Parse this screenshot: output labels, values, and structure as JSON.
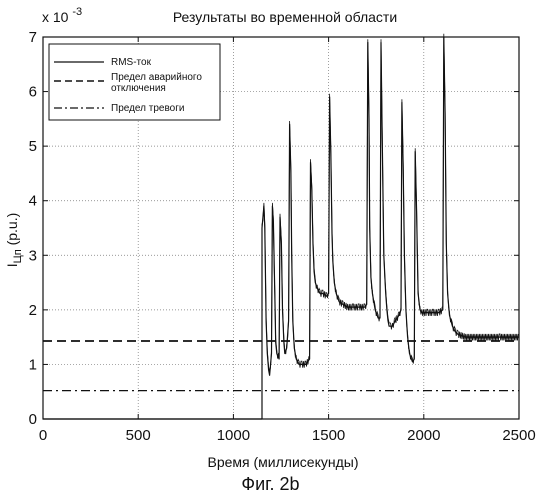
{
  "chart_data": {
    "type": "line",
    "title": "Результаты во временной области",
    "xlabel": "Время (миллисекунды)",
    "ylabel": "I",
    "ylabel_subscript": "Цп",
    "ylabel_suffix": " (p.u.)",
    "y_multiplier": "x 10",
    "y_multiplier_exponent": "-3",
    "xlim": [
      0,
      2500
    ],
    "ylim": [
      0,
      7
    ],
    "x_ticks": [
      "0",
      "500",
      "1000",
      "1500",
      "2000",
      "2500"
    ],
    "y_ticks": [
      "0",
      "1",
      "2",
      "3",
      "4",
      "5",
      "6",
      "7"
    ],
    "grid": true,
    "legend_position": "top-left",
    "series": [
      {
        "name": "RMS-ток",
        "style": "solid",
        "x": [
          0,
          1150,
          1150,
          1160,
          1165,
          1172,
          1178,
          1185,
          1190,
          1200,
          1205,
          1210,
          1218,
          1222,
          1228,
          1240,
          1245,
          1252,
          1258,
          1265,
          1270,
          1280,
          1290,
          1295,
          1302,
          1306,
          1312,
          1320,
          1330,
          1345,
          1360,
          1380,
          1400,
          1405,
          1412,
          1418,
          1424,
          1430,
          1440,
          1455,
          1470,
          1490,
          1500,
          1505,
          1512,
          1518,
          1522,
          1530,
          1540,
          1555,
          1575,
          1600,
          1630,
          1660,
          1690,
          1700,
          1706,
          1712,
          1716,
          1722,
          1730,
          1745,
          1760,
          1770,
          1775,
          1780,
          1790,
          1800,
          1806,
          1812,
          1818,
          1825,
          1835,
          1850,
          1870,
          1880,
          1885,
          1892,
          1898,
          1906,
          1915,
          1925,
          1940,
          1950,
          1955,
          1962,
          1970,
          1980,
          1990,
          2020,
          2050,
          2080,
          2100,
          2105,
          2112,
          2118,
          2125,
          2135,
          2150,
          2165,
          2180,
          2220,
          2300,
          2400,
          2500
        ],
        "values": [
          0,
          0,
          3.5,
          3.9,
          3.5,
          1.8,
          1.2,
          0.9,
          0.8,
          1.2,
          3.9,
          3.6,
          2.2,
          1.4,
          1.2,
          1.1,
          3.7,
          3.2,
          2.0,
          1.4,
          1.2,
          1.3,
          1.8,
          5.4,
          4.5,
          3.0,
          1.8,
          1.3,
          1.1,
          1.0,
          1.0,
          1.0,
          1.1,
          4.7,
          4.2,
          3.2,
          2.7,
          2.5,
          2.4,
          2.3,
          2.3,
          2.25,
          2.3,
          5.9,
          4.8,
          3.4,
          2.9,
          2.5,
          2.3,
          2.15,
          2.1,
          2.05,
          2.05,
          2.05,
          2.05,
          2.1,
          6.9,
          5.5,
          3.5,
          2.6,
          2.3,
          2.0,
          1.85,
          1.85,
          6.9,
          5.6,
          3.0,
          2.3,
          2.0,
          1.8,
          1.7,
          1.7,
          1.7,
          1.8,
          1.9,
          2.0,
          5.8,
          4.6,
          3.0,
          2.0,
          1.5,
          1.2,
          1.05,
          1.1,
          4.9,
          3.8,
          2.3,
          2.0,
          1.95,
          1.95,
          1.95,
          1.95,
          2.0,
          7.0,
          5.6,
          3.2,
          2.3,
          1.9,
          1.7,
          1.6,
          1.55,
          1.5,
          1.5,
          1.5,
          1.5
        ]
      },
      {
        "name": "Предел аварийного отключения",
        "legend_lines": [
          "Предел аварийного",
          "отключения"
        ],
        "style": "dashed",
        "x": [
          0,
          2500
        ],
        "values": [
          1.43,
          1.43
        ]
      },
      {
        "name": "Предел тревоги",
        "style": "dashdot",
        "x": [
          0,
          2500
        ],
        "values": [
          0.52,
          0.52
        ]
      }
    ]
  },
  "figure_caption": "Фиг. 2b"
}
